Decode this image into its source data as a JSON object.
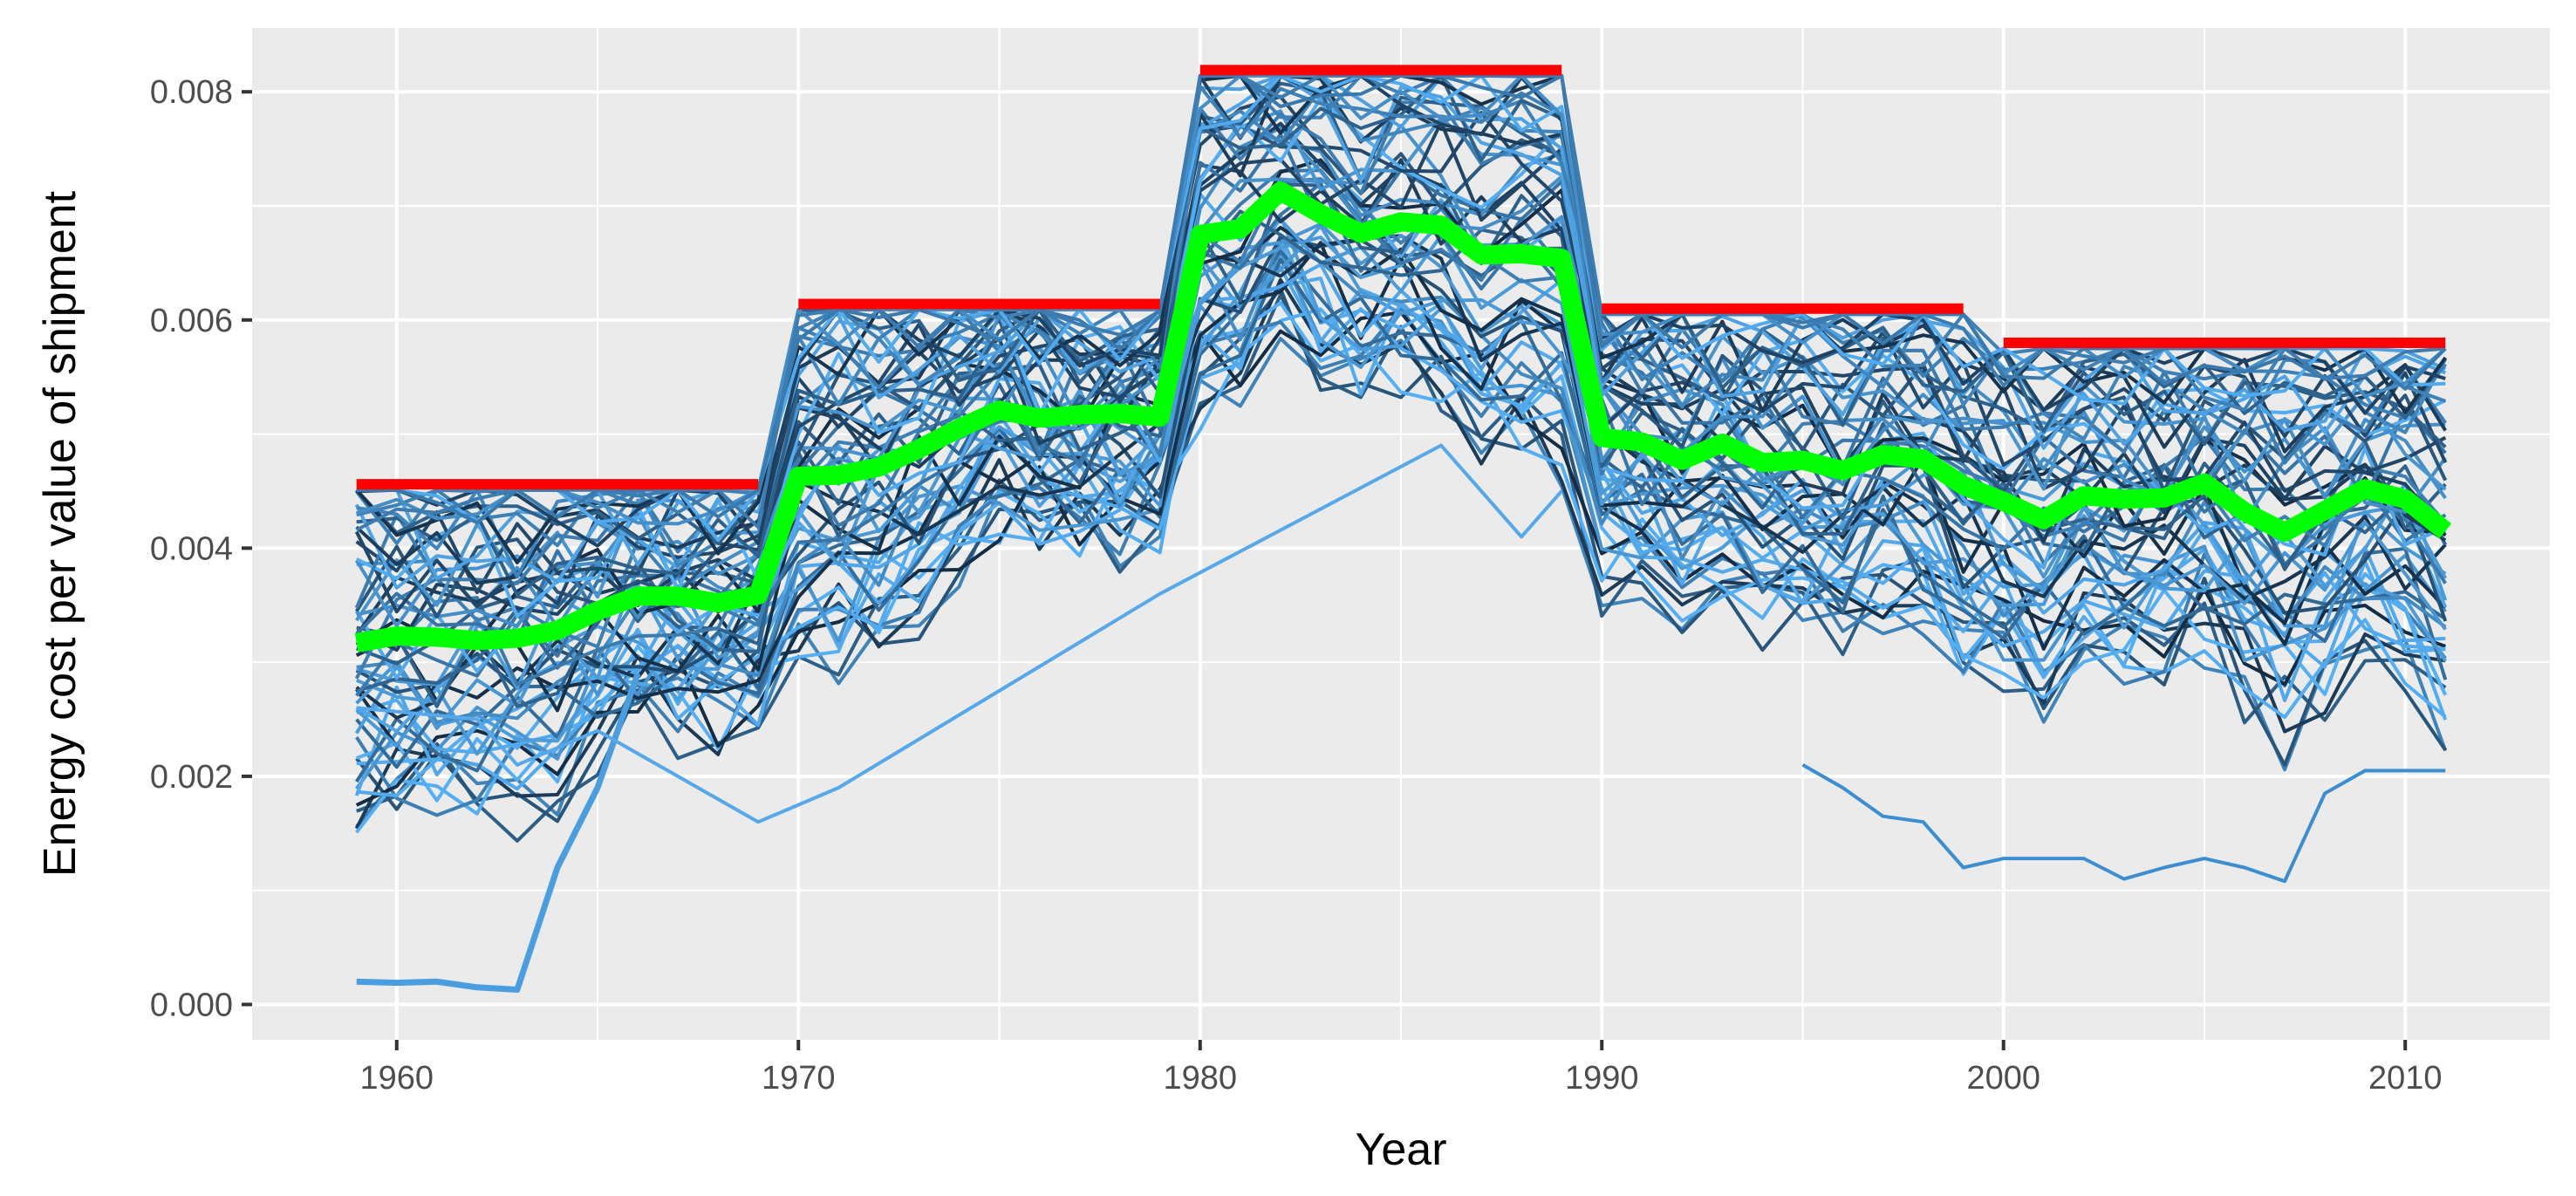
{
  "chart_data": {
    "type": "line",
    "title": "",
    "xlabel": "Year",
    "ylabel": "Energy cost per value of shipment",
    "xlim": [
      1956.4,
      2013.6
    ],
    "ylim": [
      -0.00031,
      0.00856
    ],
    "x_ticks": [
      1960,
      1970,
      1980,
      1990,
      2000,
      2010
    ],
    "x_tick_labels": [
      "1960",
      "1970",
      "1980",
      "1990",
      "2000",
      "2010"
    ],
    "y_ticks": [
      0.0,
      0.002,
      0.004,
      0.006,
      0.008
    ],
    "y_tick_labels": [
      "0.000",
      "0.002",
      "0.004",
      "0.006",
      "0.008"
    ],
    "grid": true,
    "legend": "none",
    "colors": {
      "panel": "#ebebeb",
      "grid": "#ffffff",
      "industry_dark": "#132b43",
      "industry_light": "#56b1f7",
      "median": "#00ff00",
      "decade_max": "#ff0000"
    },
    "series": [
      {
        "role": "median",
        "x": [
          1959,
          1960,
          1961,
          1962,
          1963,
          1964,
          1965,
          1966,
          1967,
          1968,
          1969,
          1970,
          1971,
          1972,
          1973,
          1974,
          1975,
          1976,
          1977,
          1978,
          1979,
          1980,
          1981,
          1982,
          1983,
          1984,
          1985,
          1986,
          1987,
          1988,
          1989,
          1990,
          1991,
          1992,
          1993,
          1994,
          1995,
          1996,
          1997,
          1998,
          1999,
          2000,
          2001,
          2002,
          2003,
          2004,
          2005,
          2006,
          2007,
          2008,
          2009,
          2010,
          2011
        ],
        "y": [
          0.00317,
          0.00323,
          0.00322,
          0.00319,
          0.00321,
          0.00328,
          0.00345,
          0.00358,
          0.00358,
          0.00352,
          0.00359,
          0.00463,
          0.00464,
          0.00471,
          0.00487,
          0.00505,
          0.00521,
          0.00514,
          0.00517,
          0.00518,
          0.00515,
          0.00675,
          0.0068,
          0.00713,
          0.00693,
          0.00676,
          0.00686,
          0.00683,
          0.00657,
          0.00658,
          0.00654,
          0.00497,
          0.00493,
          0.00477,
          0.00492,
          0.00475,
          0.00477,
          0.00468,
          0.00482,
          0.00478,
          0.00455,
          0.00441,
          0.00425,
          0.00446,
          0.00443,
          0.00444,
          0.00457,
          0.00432,
          0.00414,
          0.00433,
          0.00452,
          0.00443,
          0.00415
        ]
      },
      {
        "role": "decade_max",
        "segments": [
          {
            "x": [
              1959,
              1969
            ],
            "y": 0.00456
          },
          {
            "x": [
              1970,
              1979
            ],
            "y": 0.00614
          },
          {
            "x": [
              1980,
              1989
            ],
            "y": 0.00819
          },
          {
            "x": [
              1990,
              1999
            ],
            "y": 0.0061
          },
          {
            "x": [
              2000,
              2011
            ],
            "y": 0.0058
          }
        ]
      }
    ],
    "industries": {
      "count": 60,
      "years": [
        1959,
        1960,
        1961,
        1962,
        1963,
        1964,
        1965,
        1966,
        1967,
        1968,
        1969,
        1970,
        1971,
        1972,
        1973,
        1974,
        1975,
        1976,
        1977,
        1978,
        1979,
        1980,
        1981,
        1982,
        1983,
        1984,
        1985,
        1986,
        1987,
        1988,
        1989,
        1990,
        1991,
        1992,
        1993,
        1994,
        1995,
        1996,
        1997,
        1998,
        1999,
        2000,
        2001,
        2002,
        2003,
        2004,
        2005,
        2006,
        2007,
        2008,
        2009,
        2010,
        2011
      ],
      "outlier": {
        "x": [
          1959,
          1960,
          1961,
          1962,
          1963,
          1964,
          1965,
          1966
        ],
        "y": [
          0.0002,
          0.00019,
          0.0002,
          0.00015,
          0.00013,
          0.0012,
          0.0019,
          0.0029
        ]
      },
      "low_series": {
        "x": [
          1995,
          1996,
          1997,
          1998,
          1999,
          2000,
          2001,
          2002,
          2003,
          2004,
          2005,
          2006,
          2007,
          2008,
          2009,
          2010,
          2011
        ],
        "y": [
          0.0021,
          0.0019,
          0.00165,
          0.0016,
          0.0012,
          0.00128,
          0.00128,
          0.00128,
          0.0011,
          0.0012,
          0.00128,
          0.0012,
          0.00108,
          0.00185,
          0.00205,
          0.00205,
          0.00205
        ]
      },
      "sparse_series": {
        "x": [
          1959,
          1962,
          1963,
          1965,
          1969,
          1971,
          1979,
          1986,
          1987,
          1988,
          1989
        ],
        "y": [
          0.0026,
          0.0025,
          0.0021,
          0.0024,
          0.0016,
          0.0019,
          0.0036,
          0.0049,
          0.0045,
          0.0041,
          0.0045
        ]
      }
    }
  }
}
